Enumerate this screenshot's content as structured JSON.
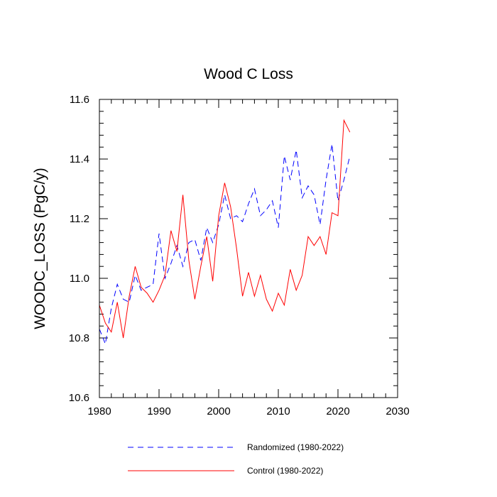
{
  "chart_data": {
    "type": "line",
    "title": "Wood C Loss",
    "xlabel": "",
    "ylabel": "WOODC_LOSS  (PgC/y)",
    "xlim": [
      1980,
      2030
    ],
    "ylim": [
      10.6,
      11.6
    ],
    "xticks": [
      1980,
      1990,
      2000,
      2010,
      2020,
      2030
    ],
    "yticks": [
      10.6,
      10.8,
      11.0,
      11.2,
      11.4,
      11.6
    ],
    "xtick_labels": [
      "1980",
      "1990",
      "2000",
      "2010",
      "2020",
      "2030"
    ],
    "ytick_labels": [
      "10.6",
      "10.8",
      "11.0",
      "11.2",
      "11.4",
      "11.6"
    ],
    "grid": false,
    "legend_position": "bottom",
    "x": [
      1980,
      1981,
      1982,
      1983,
      1984,
      1985,
      1986,
      1987,
      1988,
      1989,
      1990,
      1991,
      1992,
      1993,
      1994,
      1995,
      1996,
      1997,
      1998,
      1999,
      2000,
      2001,
      2002,
      2003,
      2004,
      2005,
      2006,
      2007,
      2008,
      2009,
      2010,
      2011,
      2012,
      2013,
      2014,
      2015,
      2016,
      2017,
      2018,
      2019,
      2020,
      2021,
      2022
    ],
    "series": [
      {
        "name": "Randomized (1980-2022)",
        "color": "#0000ff",
        "style": "dashed",
        "values": [
          10.83,
          10.78,
          10.9,
          10.98,
          10.93,
          10.92,
          11.01,
          10.96,
          10.97,
          10.98,
          11.15,
          11.0,
          11.05,
          11.11,
          11.04,
          11.12,
          11.13,
          11.06,
          11.17,
          11.12,
          11.18,
          11.28,
          11.2,
          11.21,
          11.19,
          11.25,
          11.3,
          11.21,
          11.23,
          11.26,
          11.17,
          11.41,
          11.33,
          11.43,
          11.27,
          11.31,
          11.28,
          11.18,
          11.33,
          11.45,
          11.26,
          11.33,
          11.41
        ]
      },
      {
        "name": "Control (1980-2022)",
        "color": "#ff0000",
        "style": "solid",
        "values": [
          10.91,
          10.85,
          10.82,
          10.92,
          10.8,
          10.94,
          11.04,
          10.97,
          10.95,
          10.92,
          10.96,
          11.01,
          11.16,
          11.09,
          11.28,
          11.06,
          10.93,
          11.04,
          11.14,
          10.99,
          11.21,
          11.32,
          11.24,
          11.1,
          10.94,
          11.02,
          10.94,
          11.01,
          10.93,
          10.89,
          10.95,
          10.91,
          11.03,
          10.96,
          11.01,
          11.14,
          11.11,
          11.14,
          11.08,
          11.22,
          11.21,
          11.53,
          11.49
        ]
      }
    ]
  }
}
